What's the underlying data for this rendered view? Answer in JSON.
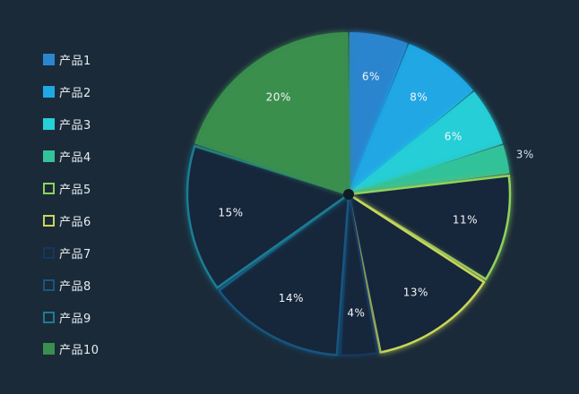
{
  "chart_data": {
    "type": "pie",
    "categories": [
      "产品1",
      "产品2",
      "产品3",
      "产品4",
      "产品5",
      "产品6",
      "产品7",
      "产品8",
      "产品9",
      "产品10"
    ],
    "values": [
      6,
      8,
      6,
      3,
      11,
      13,
      4,
      14,
      15,
      20
    ],
    "labels": [
      "6%",
      "8%",
      "6%",
      "3%",
      "11%",
      "13%",
      "4%",
      "14%",
      "15%",
      "20%"
    ],
    "fill_styles": [
      "filled",
      "filled",
      "filled",
      "filled",
      "outline",
      "outline",
      "outline",
      "outline",
      "outline",
      "filled"
    ],
    "colors": [
      "#2a86cf",
      "#1fa8e6",
      "#27cfd8",
      "#33c39a",
      "#8fd15f",
      "#c9d65a",
      "#14375f",
      "#16577f",
      "#1b7c92",
      "#3a8f4e"
    ],
    "start_angle_deg": 0,
    "direction": "clockwise",
    "legend_position": "left"
  }
}
